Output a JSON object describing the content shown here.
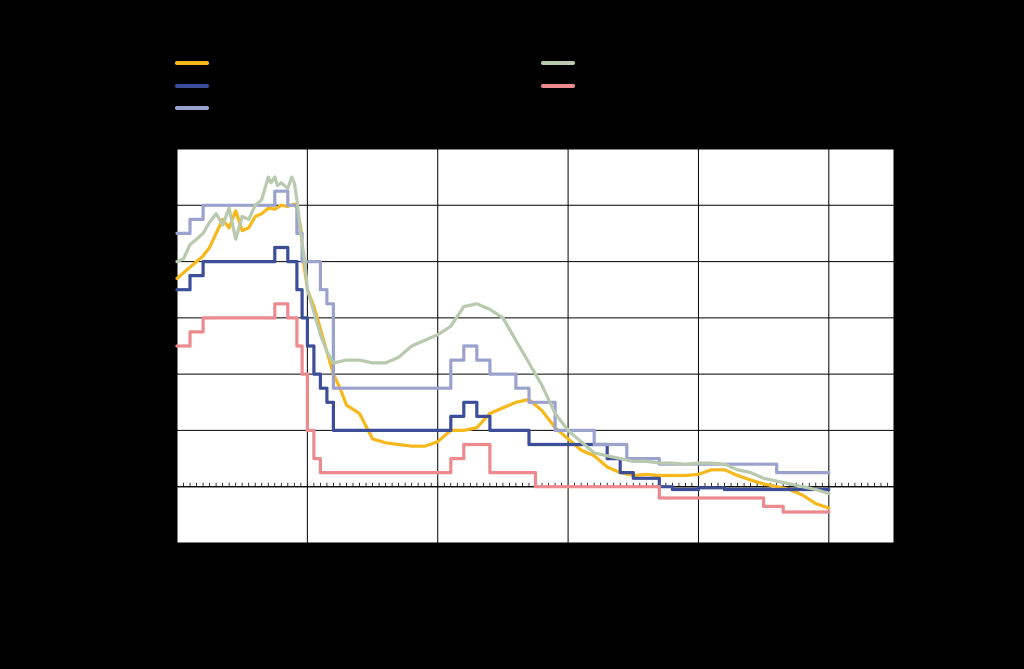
{
  "chart_data": {
    "type": "line",
    "title": "",
    "xlabel": "",
    "ylabel": "",
    "background": "#000000",
    "plot_background": "#FFFFFF",
    "grid": true,
    "legend_placement": "top",
    "xlim": [
      0,
      55
    ],
    "ylim": [
      -1,
      6
    ],
    "x_gridlines": [
      0,
      10,
      20,
      30,
      40,
      50,
      55
    ],
    "y_gridlines": [
      -1,
      0,
      1,
      2,
      3,
      4,
      5,
      6
    ],
    "minor_tick_step": 0.5,
    "series": [
      {
        "key": "yellow",
        "color": "#F6B81A",
        "x": [
          0,
          0.5,
          1,
          1.5,
          2,
          2.5,
          3,
          3.5,
          4,
          4.5,
          5,
          5.5,
          6,
          6.5,
          7,
          7.5,
          8,
          8.5,
          9,
          9.2,
          9.5,
          9.7,
          10,
          10.5,
          11,
          11.5,
          12,
          12.5,
          13,
          14,
          15,
          16,
          17,
          18,
          19,
          20,
          21,
          22,
          23,
          24,
          25,
          26,
          27,
          28,
          29,
          30,
          31,
          32,
          33,
          34,
          35,
          36,
          37,
          38,
          39,
          40,
          41,
          42,
          43,
          44,
          45,
          46,
          47,
          48,
          49,
          50
        ],
        "y": [
          3.7,
          3.8,
          3.9,
          4.0,
          4.1,
          4.25,
          4.5,
          4.75,
          4.6,
          4.9,
          4.55,
          4.6,
          4.8,
          4.85,
          4.95,
          4.93,
          5.0,
          4.98,
          5.02,
          4.95,
          4.6,
          4.0,
          3.5,
          3.2,
          2.8,
          2.4,
          2.0,
          1.75,
          1.45,
          1.3,
          0.85,
          0.78,
          0.75,
          0.72,
          0.72,
          0.8,
          1.0,
          1.0,
          1.05,
          1.3,
          1.4,
          1.5,
          1.55,
          1.35,
          1.05,
          0.85,
          0.65,
          0.55,
          0.35,
          0.25,
          0.2,
          0.22,
          0.2,
          0.2,
          0.2,
          0.22,
          0.3,
          0.3,
          0.2,
          0.12,
          0.05,
          0.0,
          -0.05,
          -0.15,
          -0.3,
          -0.38
        ]
      },
      {
        "key": "darkblue",
        "color": "#3D4E99",
        "x": [
          0,
          1,
          1,
          2,
          2,
          7.5,
          7.5,
          8.5,
          8.5,
          9.2,
          9.2,
          9.6,
          9.6,
          10,
          10,
          10.5,
          10.5,
          11,
          11,
          11.5,
          11.5,
          12,
          12,
          21,
          21,
          22,
          22,
          23,
          23,
          24,
          24,
          27,
          27,
          33,
          33,
          34,
          34,
          35,
          35,
          37,
          37,
          38,
          38,
          40,
          40,
          42,
          42,
          50
        ],
        "y": [
          3.5,
          3.5,
          3.75,
          3.75,
          4.0,
          4.0,
          4.25,
          4.25,
          4.0,
          4.0,
          3.5,
          3.5,
          3.0,
          3.0,
          2.5,
          2.5,
          2.0,
          2.0,
          1.75,
          1.75,
          1.5,
          1.5,
          1.0,
          1.0,
          1.25,
          1.25,
          1.5,
          1.5,
          1.25,
          1.25,
          1.0,
          1.0,
          0.75,
          0.75,
          0.5,
          0.5,
          0.25,
          0.25,
          0.15,
          0.15,
          0.0,
          0.0,
          -0.05,
          -0.05,
          -0.02,
          -0.02,
          -0.05,
          -0.05
        ]
      },
      {
        "key": "lavender",
        "color": "#9BA2CE",
        "x": [
          0,
          1,
          1,
          2,
          2,
          7.5,
          7.5,
          8.5,
          8.5,
          9.2,
          9.2,
          9.6,
          9.6,
          11,
          11,
          11.5,
          11.5,
          12,
          12,
          21,
          21,
          22,
          22,
          23,
          23,
          24,
          24,
          26,
          26,
          27,
          27,
          29,
          29,
          32,
          32,
          34.5,
          34.5,
          37,
          37,
          46,
          46,
          50
        ],
        "y": [
          4.5,
          4.5,
          4.75,
          4.75,
          5.0,
          5.0,
          5.25,
          5.25,
          5.0,
          5.0,
          4.5,
          4.5,
          4.0,
          4.0,
          3.5,
          3.5,
          3.25,
          3.25,
          1.75,
          1.75,
          2.25,
          2.25,
          2.5,
          2.5,
          2.25,
          2.25,
          2.0,
          2.0,
          1.75,
          1.75,
          1.5,
          1.5,
          1.0,
          1.0,
          0.75,
          0.75,
          0.5,
          0.5,
          0.4,
          0.4,
          0.25,
          0.25
        ]
      },
      {
        "key": "sage",
        "color": "#B8C9AE",
        "x": [
          0,
          0.5,
          1,
          1.5,
          2,
          2.5,
          3,
          3.5,
          4,
          4.5,
          5,
          5.5,
          6,
          6.5,
          7,
          7.2,
          7.5,
          7.7,
          8,
          8.5,
          8.8,
          9,
          9.2,
          9.5,
          9.8,
          10,
          10.5,
          11,
          11.5,
          12,
          13,
          14,
          15,
          16,
          17,
          18,
          19,
          20,
          21,
          22,
          23,
          24,
          25,
          26,
          27,
          28,
          29,
          30,
          31,
          32,
          33,
          34,
          35,
          36,
          37,
          38,
          39,
          40,
          41,
          42,
          43,
          44,
          45,
          46,
          47,
          48,
          49,
          50
        ],
        "y": [
          4.0,
          4.05,
          4.3,
          4.4,
          4.5,
          4.7,
          4.85,
          4.65,
          4.95,
          4.4,
          4.8,
          4.75,
          5.0,
          5.1,
          5.5,
          5.4,
          5.5,
          5.35,
          5.4,
          5.3,
          5.5,
          5.4,
          5.1,
          4.5,
          4.0,
          3.5,
          3.1,
          2.7,
          2.4,
          2.2,
          2.25,
          2.25,
          2.2,
          2.2,
          2.3,
          2.5,
          2.6,
          2.7,
          2.85,
          3.2,
          3.25,
          3.15,
          3.0,
          2.6,
          2.2,
          1.8,
          1.3,
          1.0,
          0.8,
          0.6,
          0.55,
          0.5,
          0.45,
          0.45,
          0.42,
          0.42,
          0.4,
          0.42,
          0.42,
          0.4,
          0.3,
          0.25,
          0.15,
          0.1,
          0.05,
          0.0,
          -0.05,
          -0.12
        ]
      },
      {
        "key": "pink",
        "color": "#EC8A8E",
        "x": [
          0,
          1,
          1,
          2,
          2,
          7.5,
          7.5,
          8.5,
          8.5,
          9.2,
          9.2,
          9.6,
          9.6,
          10,
          10,
          10.5,
          10.5,
          11,
          11,
          21,
          21,
          22,
          22,
          24,
          24,
          27.5,
          27.5,
          37,
          37,
          38.5,
          38.5,
          45,
          45,
          46.5,
          46.5,
          50
        ],
        "y": [
          2.5,
          2.5,
          2.75,
          2.75,
          3.0,
          3.0,
          3.25,
          3.25,
          3.0,
          3.0,
          2.5,
          2.5,
          2.0,
          2.0,
          1.0,
          1.0,
          0.5,
          0.5,
          0.25,
          0.25,
          0.5,
          0.5,
          0.75,
          0.75,
          0.25,
          0.25,
          0.0,
          0.0,
          -0.2,
          -0.2,
          -0.2,
          -0.2,
          -0.35,
          -0.35,
          -0.45,
          -0.45
        ]
      }
    ]
  }
}
